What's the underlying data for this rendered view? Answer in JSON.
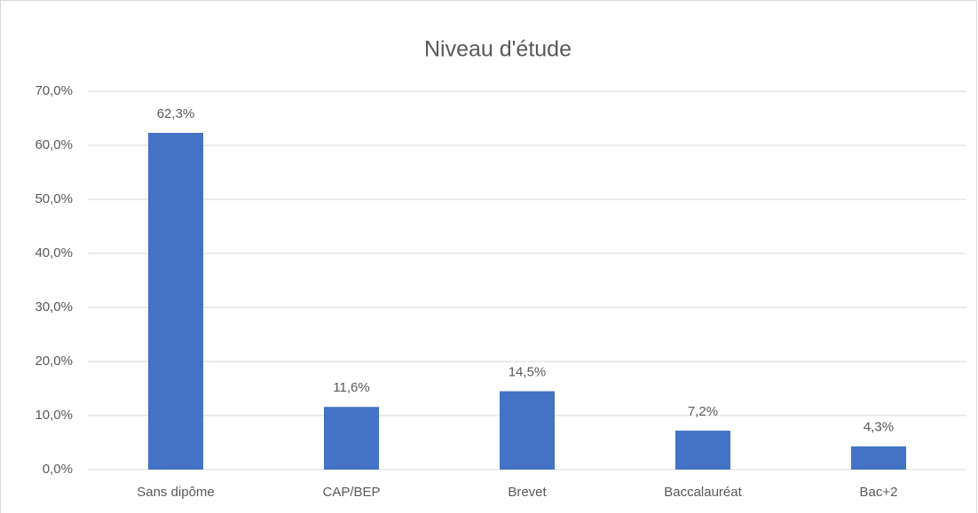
{
  "chart_data": {
    "type": "bar",
    "title": "Niveau d'étude",
    "categories": [
      "Sans dipôme",
      "CAP/BEP",
      "Brevet",
      "Baccalauréat",
      "Bac+2"
    ],
    "values": [
      62.3,
      11.6,
      14.5,
      7.2,
      4.3
    ],
    "value_labels": [
      "62,3%",
      "11,6%",
      "14,5%",
      "7,2%",
      "4,3%"
    ],
    "color": "#4472c4",
    "ylim": [
      0,
      70
    ],
    "yticks": [
      {
        "value": 0,
        "label": "0,0%"
      },
      {
        "value": 10,
        "label": "10,0%"
      },
      {
        "value": 20,
        "label": "20,0%"
      },
      {
        "value": 30,
        "label": "30,0%"
      },
      {
        "value": 40,
        "label": "40,0%"
      },
      {
        "value": 50,
        "label": "50,0%"
      },
      {
        "value": 60,
        "label": "60,0%"
      },
      {
        "value": 70,
        "label": "70,0%"
      }
    ],
    "grid": true
  }
}
